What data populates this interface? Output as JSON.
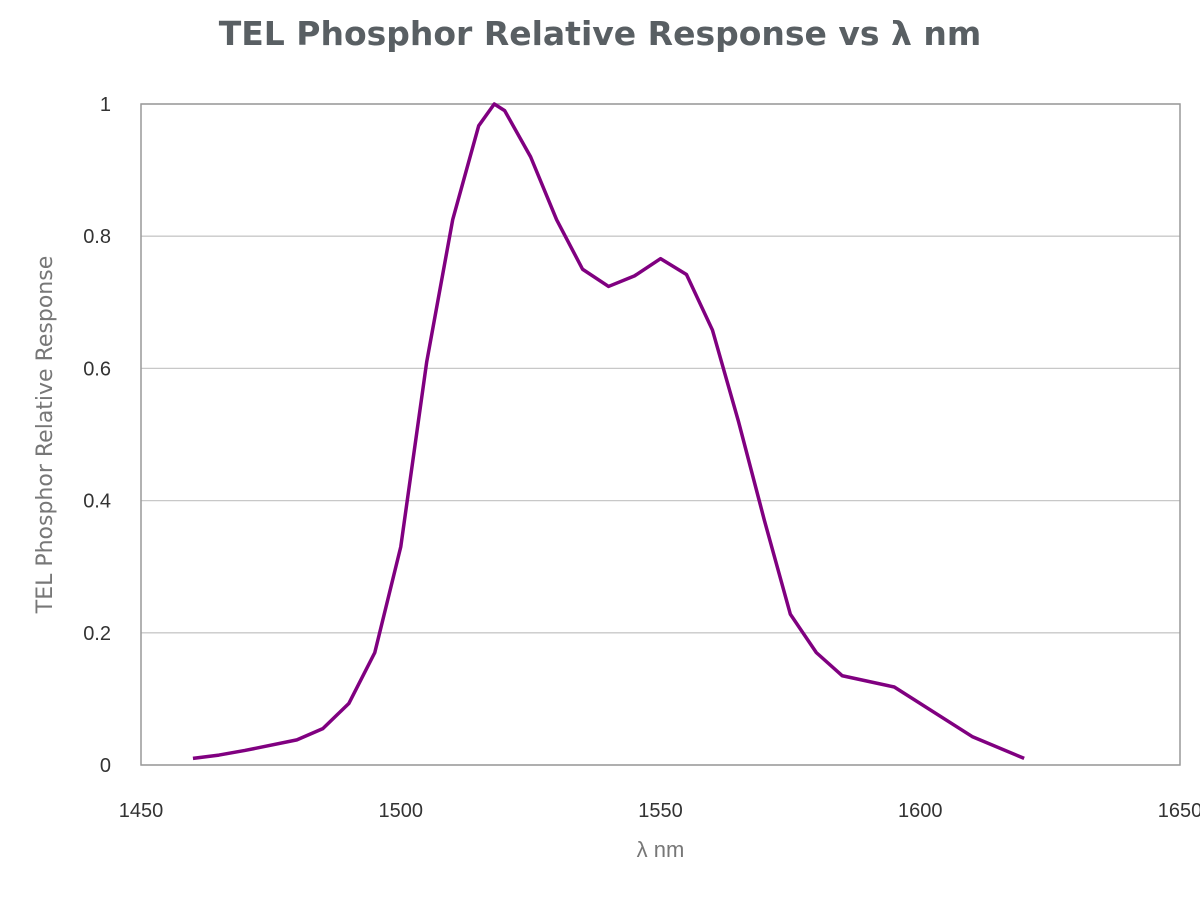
{
  "chart_data": {
    "type": "line",
    "title": "TEL Phosphor Relative Response vs λ nm",
    "xlabel": "λ nm",
    "ylabel": "TEL Phosphor Relative Response",
    "xlim": [
      1450,
      1650
    ],
    "ylim": [
      0,
      1
    ],
    "xticks": [
      "1450",
      "1500",
      "1550",
      "1600",
      "1650"
    ],
    "yticks": [
      "0",
      "0.2",
      "0.4",
      "0.6",
      "0.8",
      "1"
    ],
    "grid": "horizontal",
    "legend": "none",
    "series": [
      {
        "color": "#800080",
        "x": [
          1460,
          1465,
          1470,
          1480,
          1485,
          1490,
          1495,
          1500,
          1505,
          1510,
          1515,
          1518,
          1520,
          1525,
          1530,
          1535,
          1540,
          1545,
          1550,
          1555,
          1560,
          1565,
          1570,
          1575,
          1580,
          1585,
          1595,
          1610,
          1620
        ],
        "y": [
          0.01,
          0.015,
          0.022,
          0.038,
          0.055,
          0.093,
          0.17,
          0.33,
          0.61,
          0.825,
          0.967,
          1.0,
          0.99,
          0.92,
          0.825,
          0.75,
          0.724,
          0.74,
          0.766,
          0.742,
          0.658,
          0.52,
          0.37,
          0.228,
          0.17,
          0.135,
          0.118,
          0.043,
          0.01
        ]
      }
    ]
  }
}
